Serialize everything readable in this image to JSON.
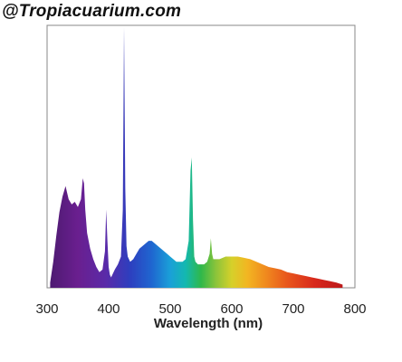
{
  "watermark": "@Tropiacuarium.com",
  "chart_data": {
    "type": "area",
    "title": "",
    "xlabel": "Wavelength (nm)",
    "ylabel": "",
    "xlim": [
      300,
      800
    ],
    "ylim": [
      0,
      1
    ],
    "grid": false,
    "legend": "none",
    "x_ticks": [
      300,
      400,
      500,
      600,
      700,
      800
    ],
    "x_tick_labels": [
      "300",
      "400",
      "500",
      "600",
      "700",
      "800"
    ],
    "series": [
      {
        "x": [
          305,
          310,
          315,
          320,
          325,
          330,
          335,
          340,
          345,
          350,
          355,
          358,
          360,
          362,
          365,
          370,
          375,
          380,
          385,
          390,
          394,
          396,
          398,
          400,
          402,
          404,
          406,
          410,
          415,
          420,
          423,
          425,
          427,
          429,
          431,
          435,
          440,
          445,
          450,
          455,
          460,
          465,
          470,
          475,
          480,
          485,
          490,
          495,
          500,
          505,
          510,
          515,
          520,
          525,
          530,
          533,
          535,
          537,
          539,
          541,
          545,
          550,
          555,
          560,
          564,
          566,
          568,
          570,
          575,
          580,
          590,
          600,
          610,
          620,
          630,
          640,
          650,
          660,
          670,
          680,
          690,
          700,
          710,
          720,
          730,
          740,
          750,
          760,
          770,
          780
        ],
        "y": [
          0.02,
          0.1,
          0.2,
          0.29,
          0.35,
          0.39,
          0.34,
          0.32,
          0.33,
          0.31,
          0.34,
          0.42,
          0.4,
          0.3,
          0.21,
          0.15,
          0.11,
          0.08,
          0.06,
          0.07,
          0.14,
          0.3,
          0.18,
          0.08,
          0.05,
          0.04,
          0.05,
          0.07,
          0.09,
          0.12,
          0.3,
          1.0,
          0.38,
          0.16,
          0.12,
          0.1,
          0.11,
          0.13,
          0.15,
          0.16,
          0.17,
          0.18,
          0.18,
          0.17,
          0.16,
          0.15,
          0.14,
          0.13,
          0.12,
          0.11,
          0.1,
          0.1,
          0.1,
          0.11,
          0.18,
          0.45,
          0.5,
          0.26,
          0.12,
          0.1,
          0.09,
          0.09,
          0.09,
          0.1,
          0.13,
          0.19,
          0.13,
          0.11,
          0.11,
          0.11,
          0.12,
          0.12,
          0.12,
          0.115,
          0.11,
          0.1,
          0.09,
          0.08,
          0.075,
          0.07,
          0.06,
          0.055,
          0.05,
          0.045,
          0.04,
          0.035,
          0.03,
          0.025,
          0.02,
          0.012
        ]
      }
    ]
  }
}
